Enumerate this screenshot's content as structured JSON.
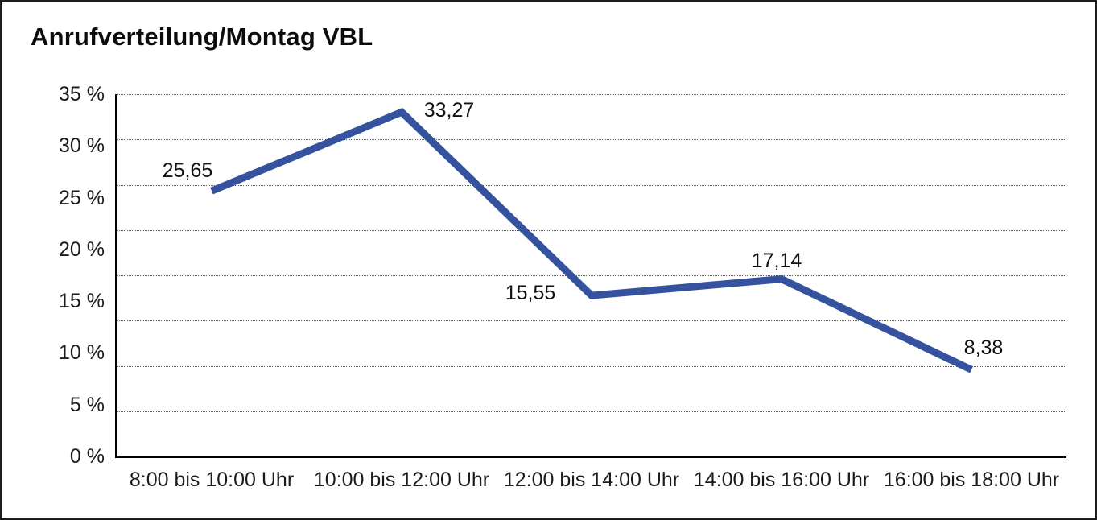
{
  "chart_data": {
    "type": "line",
    "title": "Anrufverteilung/Montag VBL",
    "categories": [
      "8:00 bis 10:00 Uhr",
      "10:00 bis 12:00 Uhr",
      "12:00 bis 14:00 Uhr",
      "14:00 bis 16:00 Uhr",
      "16:00 bis 18:00 Uhr"
    ],
    "values": [
      25.65,
      33.27,
      15.55,
      17.14,
      8.38
    ],
    "value_labels": [
      "25,65",
      "33,27",
      "15,55",
      "17,14",
      "8,38"
    ],
    "y_ticks": [
      "35 %",
      "30 %",
      "25 %",
      "20 %",
      "15 %",
      "10 %",
      "5 %",
      "0 %"
    ],
    "ylim": [
      0,
      35
    ],
    "legend": "none",
    "grid": "horizontal-dotted",
    "markers": "none",
    "line_color": "#34529D",
    "axis_color": "#000000",
    "grid_color": "#5c5c5c",
    "text_color": "#1b1b1b",
    "background_color": "#ffffff",
    "frame_border_color": "#1d1d1d"
  }
}
